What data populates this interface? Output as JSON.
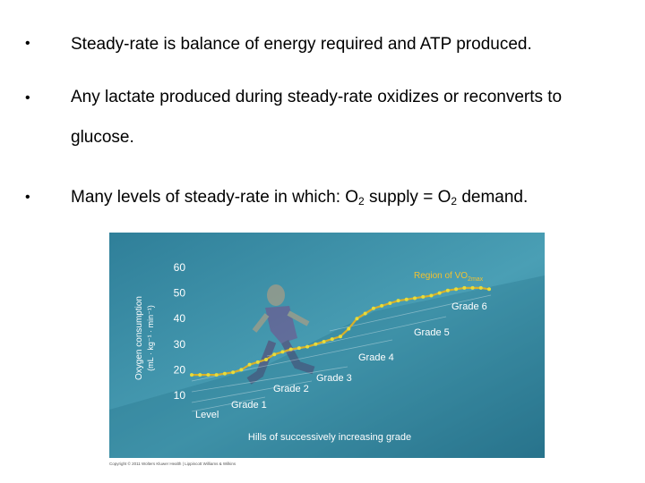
{
  "bullets": [
    {
      "parts": [
        "Steady-rate is balance of energy required and ATP produced."
      ]
    },
    {
      "parts": [
        "Any lactate produced during steady-rate oxidizes or reconverts to glucose."
      ]
    },
    {
      "parts": [
        "Many levels of steady-rate in which: O",
        "2",
        " supply = O",
        "2",
        " demand."
      ]
    }
  ],
  "bullet_glyph": "•",
  "figure": {
    "colors": {
      "background": "#3f8fa6",
      "curve": "#d8b02a",
      "dots": "#e8dc3a",
      "grade_line": "#ffffff"
    },
    "annotation_prefix": "Region of V",
    "annotation_dot": "·",
    "annotation_o2": "O",
    "annotation_sub": "2max",
    "copyright": "Copyright © 2011 Wolters Kluwer Health | Lippincott Williams & Wilkins",
    "chart_data": {
      "type": "line",
      "ylabel_line1": "Oxygen consumption",
      "ylabel_line2": "(mL · kg⁻¹ · min⁻¹)",
      "xlabel": "Hills of successively increasing grade",
      "y_ticks": [
        60,
        50,
        40,
        30,
        20,
        10
      ],
      "ylim": [
        0,
        65
      ],
      "grid": false,
      "grade_labels": [
        "Level",
        "Grade 1",
        "Grade 2",
        "Grade 3",
        "Grade 4",
        "Grade 5",
        "Grade 6"
      ],
      "x": [
        0,
        1,
        2,
        3,
        4,
        5,
        6,
        7,
        8,
        9,
        10,
        11,
        12,
        13,
        14,
        15,
        16,
        17,
        18,
        19,
        20,
        21,
        22,
        23,
        24,
        25,
        26,
        27,
        28,
        29,
        30,
        31,
        32,
        33,
        34,
        35,
        36
      ],
      "values": [
        18,
        18,
        18,
        18,
        18.5,
        19,
        20,
        22,
        23,
        24,
        26,
        27,
        28,
        28.5,
        29,
        30,
        31,
        32,
        33,
        36,
        40,
        42,
        44,
        45,
        46,
        47,
        47.5,
        48,
        48.5,
        49,
        50,
        51,
        51.5,
        52,
        52,
        52,
        51.5
      ]
    }
  }
}
